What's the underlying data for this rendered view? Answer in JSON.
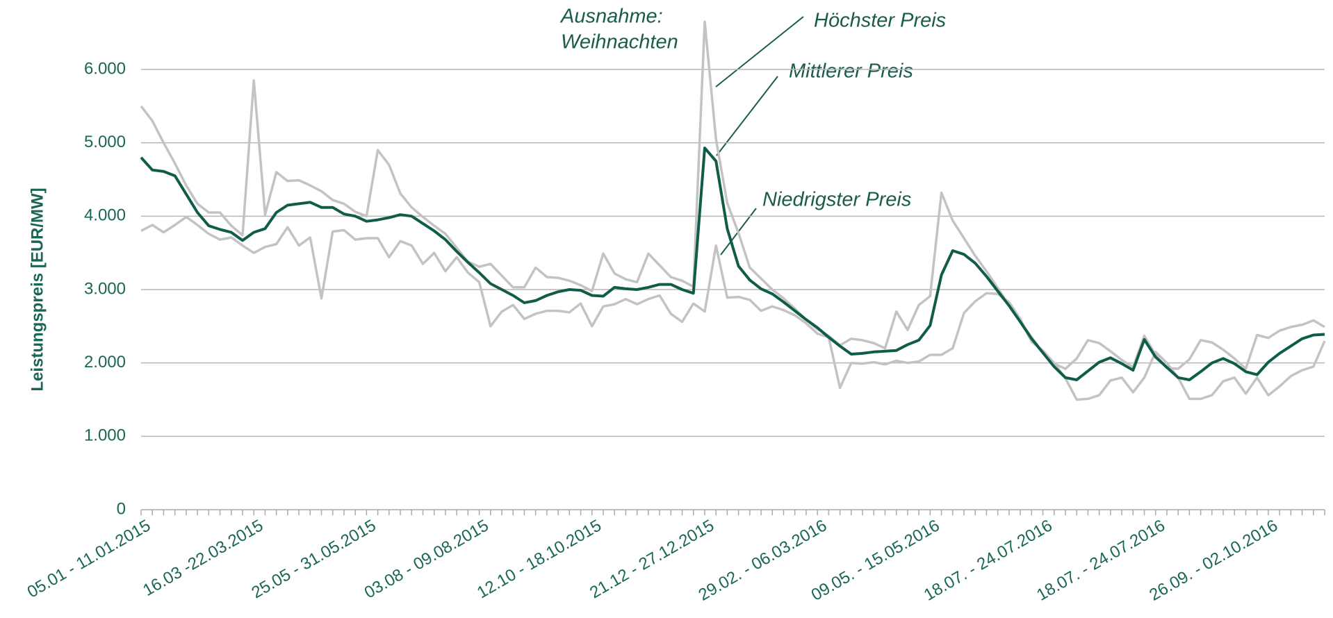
{
  "chart_data": {
    "type": "line",
    "y_label": "Leistungspreis [EUR/MW]",
    "categories": [
      "05.01 - 11.01.2015",
      null,
      null,
      null,
      null,
      null,
      null,
      null,
      null,
      null,
      "16.03 -22.03.2015",
      null,
      null,
      null,
      null,
      null,
      null,
      null,
      null,
      null,
      "25.05 - 31.05.2015",
      null,
      null,
      null,
      null,
      null,
      null,
      null,
      null,
      null,
      "03.08 - 09.08.2015",
      null,
      null,
      null,
      null,
      null,
      null,
      null,
      null,
      null,
      "12.10 - 18.10.2015",
      null,
      null,
      null,
      null,
      null,
      null,
      null,
      null,
      null,
      "21.12 - 27.12.2015",
      null,
      null,
      null,
      null,
      null,
      null,
      null,
      null,
      null,
      "29.02. - 06.03.2016",
      null,
      null,
      null,
      null,
      null,
      null,
      null,
      null,
      null,
      "09.05. - 15.05.2016",
      null,
      null,
      null,
      null,
      null,
      null,
      null,
      null,
      null,
      "18.07. - 24.07.2016",
      null,
      null,
      null,
      null,
      null,
      null,
      null,
      null,
      null,
      "18.07. - 24.07.2016",
      null,
      null,
      null,
      null,
      null,
      null,
      null,
      null,
      null,
      "26.09. - 02.10.2016",
      null,
      null,
      null,
      null,
      null
    ],
    "series": [
      {
        "name": "Höchster Preis",
        "color": "#c3c3c3",
        "values": [
          5500,
          5300,
          5000,
          4720,
          4420,
          4170,
          4050,
          4050,
          3870,
          3740,
          5850,
          4020,
          4600,
          4480,
          4490,
          4420,
          4340,
          4220,
          4170,
          4060,
          4000,
          4900,
          4700,
          4310,
          4120,
          3990,
          3870,
          3760,
          3570,
          3380,
          3310,
          3350,
          3190,
          3030,
          3030,
          3300,
          3170,
          3160,
          3120,
          3060,
          2980,
          3490,
          3220,
          3140,
          3100,
          3490,
          3330,
          3170,
          3120,
          3040,
          6650,
          5050,
          4180,
          3770,
          3300,
          3150,
          3000,
          2880,
          2740,
          2590,
          2460,
          2370,
          2240,
          2330,
          2310,
          2270,
          2200,
          2700,
          2450,
          2790,
          2910,
          4320,
          3940,
          3700,
          3460,
          3250,
          3020,
          2790,
          2570,
          2350,
          2140,
          1990,
          1920,
          2060,
          2310,
          2270,
          2160,
          2040,
          1940,
          2370,
          2110,
          1930,
          1920,
          2050,
          2310,
          2280,
          2180,
          2060,
          1920,
          2380,
          2340,
          2440,
          2490,
          2520,
          2580,
          2490
        ]
      },
      {
        "name": "Mittlerer Preis",
        "color": "#0f5c4a",
        "values": [
          4800,
          4630,
          4610,
          4550,
          4300,
          4050,
          3870,
          3820,
          3780,
          3670,
          3780,
          3830,
          4050,
          4150,
          4170,
          4190,
          4120,
          4120,
          4030,
          4000,
          3930,
          3950,
          3980,
          4020,
          4000,
          3900,
          3800,
          3680,
          3520,
          3370,
          3230,
          3080,
          3000,
          2920,
          2820,
          2850,
          2920,
          2970,
          3000,
          2990,
          2920,
          2910,
          3030,
          3010,
          3000,
          3030,
          3070,
          3070,
          3000,
          2950,
          4930,
          4750,
          3830,
          3320,
          3130,
          3010,
          2940,
          2830,
          2710,
          2590,
          2480,
          2350,
          2230,
          2120,
          2130,
          2150,
          2160,
          2170,
          2250,
          2310,
          2510,
          3200,
          3530,
          3480,
          3360,
          3180,
          2980,
          2780,
          2560,
          2330,
          2140,
          1950,
          1800,
          1770,
          1890,
          2010,
          2070,
          1990,
          1900,
          2320,
          2080,
          1940,
          1800,
          1770,
          1880,
          2000,
          2060,
          1990,
          1880,
          1840,
          2010,
          2130,
          2230,
          2330,
          2380,
          2390
        ]
      },
      {
        "name": "Niedrigster Preis",
        "color": "#c3c3c3",
        "values": [
          3800,
          3880,
          3780,
          3880,
          3990,
          3880,
          3760,
          3680,
          3710,
          3600,
          3500,
          3580,
          3620,
          3850,
          3600,
          3710,
          2880,
          3790,
          3810,
          3680,
          3700,
          3700,
          3440,
          3660,
          3600,
          3350,
          3500,
          3250,
          3440,
          3230,
          3100,
          2500,
          2700,
          2790,
          2600,
          2670,
          2710,
          2710,
          2690,
          2810,
          2500,
          2770,
          2800,
          2870,
          2800,
          2870,
          2920,
          2670,
          2560,
          2810,
          2700,
          3600,
          2890,
          2900,
          2860,
          2710,
          2770,
          2720,
          2650,
          2540,
          2400,
          2350,
          1660,
          2000,
          1990,
          2010,
          1980,
          2030,
          2000,
          2020,
          2110,
          2110,
          2200,
          2680,
          2840,
          2950,
          2940,
          2830,
          2600,
          2290,
          2170,
          2000,
          1790,
          1500,
          1510,
          1560,
          1760,
          1800,
          1600,
          1800,
          2150,
          2000,
          1800,
          1510,
          1510,
          1560,
          1750,
          1800,
          1580,
          1800,
          1560,
          1680,
          1820,
          1900,
          1950,
          2300
        ]
      }
    ],
    "annotations": [
      "Ausnahme:",
      "Weihnachten"
    ],
    "ylim": [
      0,
      6000
    ],
    "yticks": [
      0,
      {
        "value": 1000,
        "label": "1.000"
      },
      {
        "value": 2000,
        "label": "2.000"
      },
      {
        "value": 3000,
        "label": "3.000"
      },
      {
        "value": 4000,
        "label": "4.000"
      },
      {
        "value": 5000,
        "label": "5.000"
      },
      {
        "value": 6000,
        "label": "6.000"
      }
    ],
    "grid": true
  }
}
